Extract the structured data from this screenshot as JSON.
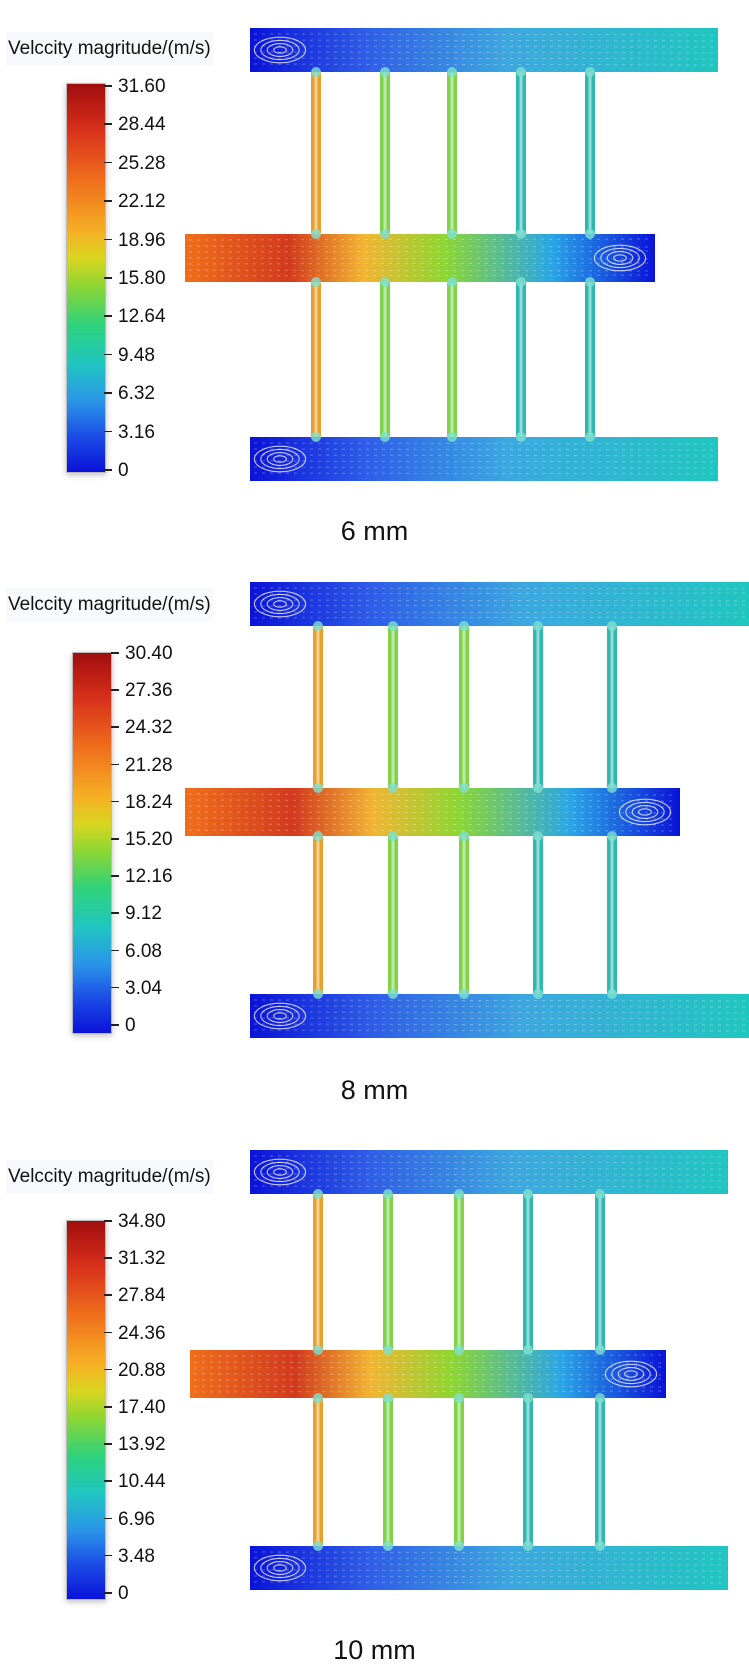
{
  "panels": [
    {
      "title": "Velccity magritude/(m/s)",
      "ticks": [
        "31.60",
        "28.44",
        "25.28",
        "22.12",
        "18.96",
        "15.80",
        "12.64",
        "9.48",
        "6.32",
        "3.16",
        "0"
      ],
      "caption": "6 mm"
    },
    {
      "title": "Velccity magritude/(m/s)",
      "ticks": [
        "30.40",
        "27.36",
        "24.32",
        "21.28",
        "18.24",
        "15.20",
        "12.16",
        "9.12",
        "6.08",
        "3.04",
        "0"
      ],
      "caption": "8 mm"
    },
    {
      "title": "Velccity magritude/(m/s)",
      "ticks": [
        "34.80",
        "31.32",
        "27.84",
        "24.36",
        "20.88",
        "17.40",
        "13.92",
        "10.44",
        "6.96",
        "3.48",
        "0"
      ],
      "caption": "10 mm"
    }
  ],
  "colors": {
    "max": "#a00d0d",
    "high": "#ef6f1c",
    "mid": "#8ed632",
    "low": "#20c6c0",
    "min": "#0a12d8"
  }
}
